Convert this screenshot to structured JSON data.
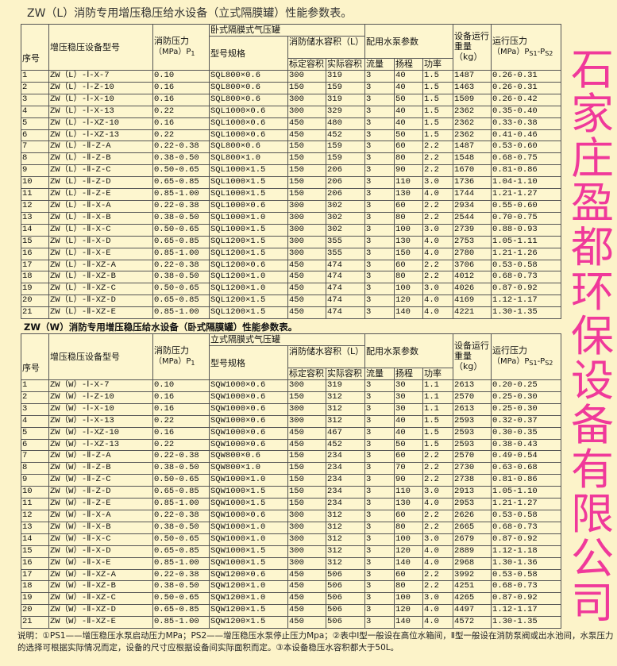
{
  "table1": {
    "title": "ZW（L）消防专用增压稳压给水设备（立式隔膜罐）性能参数表。",
    "headers": {
      "no": "序号",
      "model": "增压稳压设备型号",
      "fire_pressure": "消防压力",
      "fire_pressure_unit": "（MPa）P",
      "fire_pressure_sub": "1",
      "tank_group": "卧式隔膜式气压罐",
      "tank_spec": "型号规格",
      "volume_group": "消防储水容积（L）",
      "rated_volume": "标定容积",
      "actual_volume": "实际容积",
      "pump_group": "配用水泵参数",
      "flow": "流量",
      "head": "扬程",
      "power": "功率",
      "weight": "设备运行重量（kg）",
      "op_pressure": "运行压力",
      "op_pressure_unit": "（MPa）P",
      "op_s1": "S1",
      "op_dash": "-P",
      "op_s2": "S2"
    },
    "rows": [
      [
        "1",
        "ZW（L）-Ⅰ-X-7",
        "0.10",
        "SQL800×0.6",
        "300",
        "319",
        "3",
        "40",
        "1.5",
        "1487",
        "0.26-0.31"
      ],
      [
        "2",
        "ZW（L）-Ⅰ-Z-10",
        "0.16",
        "SQL800×0.6",
        "150",
        "159",
        "3",
        "40",
        "1.5",
        "1463",
        "0.26-0.31"
      ],
      [
        "3",
        "ZW（L）-Ⅰ-X-10",
        "0.16",
        "SQL800×0.6",
        "300",
        "319",
        "3",
        "50",
        "1.5",
        "1509",
        "0.26-0.42"
      ],
      [
        "4",
        "ZW（L）-Ⅰ-X-13",
        "0.22",
        "SQL1000×0.6",
        "300",
        "329",
        "3",
        "40",
        "1.5",
        "2362",
        "0.35-0.40"
      ],
      [
        "5",
        "ZW（L）-Ⅰ-XZ-10",
        "0.16",
        "SQL1000×0.6",
        "450",
        "480",
        "3",
        "40",
        "1.5",
        "2362",
        "0.33-0.38"
      ],
      [
        "6",
        "ZW（L）-Ⅰ-XZ-13",
        "0.22",
        "SQL1000×0.6",
        "450",
        "452",
        "3",
        "50",
        "1.5",
        "2362",
        "0.41-0.46"
      ],
      [
        "7",
        "ZW（L）-Ⅱ-Z-A",
        "0.22-0.38",
        "SQL800×0.6",
        "150",
        "159",
        "3",
        "60",
        "2.2",
        "1487",
        "0.53-0.60"
      ],
      [
        "8",
        "ZW（L）-Ⅱ-Z-B",
        "0.38-0.50",
        "SQL800×1.0",
        "150",
        "159",
        "3",
        "80",
        "2.2",
        "1548",
        "0.68-0.75"
      ],
      [
        "9",
        "ZW（L）-Ⅱ-Z-C",
        "0.50-0.65",
        "SQL1000×1.5",
        "150",
        "206",
        "3",
        "90",
        "2.2",
        "1670",
        "0.81-0.86"
      ],
      [
        "10",
        "ZW（L）-Ⅱ-Z-D",
        "0.65-0.85",
        "SQL1000×1.5",
        "150",
        "206",
        "3",
        "110",
        "3.0",
        "1736",
        "1.04-1.10"
      ],
      [
        "11",
        "ZW（L）-Ⅱ-Z-E",
        "0.85-1.00",
        "SQL1000×1.5",
        "150",
        "206",
        "3",
        "130",
        "4.0",
        "1744",
        "1.21-1.27"
      ],
      [
        "12",
        "ZW（L）-Ⅱ-X-A",
        "0.22-0.38",
        "SQL1000×0.6",
        "300",
        "302",
        "3",
        "60",
        "2.2",
        "2934",
        "0.55-0.60"
      ],
      [
        "13",
        "ZW（L）-Ⅱ-X-B",
        "0.38-0.50",
        "SQL1000×1.0",
        "300",
        "302",
        "3",
        "80",
        "2.2",
        "2544",
        "0.70-0.75"
      ],
      [
        "14",
        "ZW（L）-Ⅱ-X-C",
        "0.50-0.65",
        "SQL1000×1.5",
        "300",
        "302",
        "3",
        "100",
        "3.0",
        "2739",
        "0.88-0.93"
      ],
      [
        "15",
        "ZW（L）-Ⅱ-X-D",
        "0.65-0.85",
        "SQL1200×1.5",
        "300",
        "355",
        "3",
        "130",
        "4.0",
        "2753",
        "1.05-1.11"
      ],
      [
        "16",
        "ZW（L）-Ⅱ-X-E",
        "0.85-1.00",
        "SQL1200×1.5",
        "300",
        "355",
        "3",
        "150",
        "4.0",
        "2780",
        "1.21-1.26"
      ],
      [
        "17",
        "ZW（L）-Ⅱ-XZ-A",
        "0.22-0.38",
        "SQL1200×0.6",
        "450",
        "474",
        "3",
        "60",
        "2.2",
        "3706",
        "0.53-0.58"
      ],
      [
        "18",
        "ZW（L）-Ⅱ-XZ-B",
        "0.38-0.50",
        "SQL1200×1.0",
        "450",
        "474",
        "3",
        "80",
        "2.2",
        "4012",
        "0.68-0.73"
      ],
      [
        "19",
        "ZW（L）-Ⅱ-XZ-C",
        "0.50-0.65",
        "SQL1200×1.0",
        "450",
        "474",
        "3",
        "100",
        "3.0",
        "4026",
        "0.87-0.92"
      ],
      [
        "20",
        "ZW（L）-Ⅱ-XZ-D",
        "0.65-0.85",
        "SQL1200×1.5",
        "450",
        "474",
        "3",
        "120",
        "4.0",
        "4169",
        "1.12-1.17"
      ],
      [
        "21",
        "ZW（L）-Ⅱ-XZ-E",
        "0.85-1.00",
        "SQL1200×1.5",
        "450",
        "474",
        "3",
        "140",
        "4.0",
        "4221",
        "1.30-1.35"
      ]
    ]
  },
  "table2": {
    "title": "ZW（W）消防专用增压稳压给水设备（卧式隔膜罐）性能参数表。",
    "headers": {
      "no": "序号",
      "model": "增压稳压设备型号",
      "fire_pressure": "消防压力",
      "fire_pressure_unit": "（MPa）P",
      "fire_pressure_sub": "1",
      "tank_group": "立式隔膜式气压罐",
      "tank_spec": "型号规格",
      "volume_group": "消防储水容积（L）",
      "rated_volume": "标定容积",
      "actual_volume": "实际容积",
      "pump_group": "配用水泵参数",
      "flow": "流量",
      "head": "扬程",
      "power": "功率",
      "weight": "设备运行重量（kg）",
      "op_pressure": "运行压力",
      "op_pressure_unit": "（MPa）P",
      "op_s1": "S1",
      "op_dash": "-P",
      "op_s2": "S2"
    },
    "rows": [
      [
        "1",
        "ZW（W）-Ⅰ-X-7",
        "0.10",
        "SQW1000×0.6",
        "300",
        "319",
        "3",
        "30",
        "1.1",
        "2613",
        "0.20-0.25"
      ],
      [
        "2",
        "ZW（W）-Ⅰ-Z-10",
        "0.16",
        "SQW1000×0.6",
        "150",
        "312",
        "3",
        "30",
        "1.1",
        "2570",
        "0.25-0.30"
      ],
      [
        "3",
        "ZW（W）-Ⅰ-X-10",
        "0.16",
        "SQW1000×0.6",
        "300",
        "312",
        "3",
        "30",
        "1.1",
        "2613",
        "0.25-0.30"
      ],
      [
        "4",
        "ZW（W）-Ⅰ-X-13",
        "0.22",
        "SQW1000×0.6",
        "300",
        "312",
        "3",
        "40",
        "1.5",
        "2593",
        "0.32-0.37"
      ],
      [
        "5",
        "ZW（W）-Ⅰ-XZ-10",
        "0.16",
        "SQW1000×0.6",
        "450",
        "467",
        "3",
        "40",
        "1.5",
        "2593",
        "0.30-0.35"
      ],
      [
        "6",
        "ZW（W）-Ⅰ-XZ-13",
        "0.22",
        "SQW1000×0.6",
        "450",
        "452",
        "3",
        "50",
        "1.5",
        "2593",
        "0.38-0.43"
      ],
      [
        "7",
        "ZW（W）-Ⅱ-Z-A",
        "0.22-0.38",
        "SQW800×0.6",
        "150",
        "234",
        "3",
        "60",
        "2.2",
        "2570",
        "0.49-0.54"
      ],
      [
        "8",
        "ZW（W）-Ⅱ-Z-B",
        "0.38-0.50",
        "SQW800×1.0",
        "150",
        "234",
        "3",
        "70",
        "2.2",
        "2730",
        "0.63-0.68"
      ],
      [
        "9",
        "ZW（W）-Ⅱ-Z-C",
        "0.50-0.65",
        "SQW1000×1.0",
        "150",
        "234",
        "3",
        "90",
        "2.2",
        "2738",
        "0.81-0.86"
      ],
      [
        "10",
        "ZW（W）-Ⅱ-Z-D",
        "0.65-0.85",
        "SQW1000×1.5",
        "150",
        "234",
        "3",
        "110",
        "3.0",
        "2913",
        "1.05-1.10"
      ],
      [
        "11",
        "ZW（W）-Ⅱ-Z-E",
        "0.85-1.00",
        "SQW1000×1.5",
        "150",
        "234",
        "3",
        "130",
        "4.0",
        "2953",
        "1.21-1.27"
      ],
      [
        "12",
        "ZW（W）-Ⅱ-X-A",
        "0.22-0.38",
        "SQW1000×0.6",
        "300",
        "312",
        "3",
        "60",
        "2.2",
        "2626",
        "0.53-0.58"
      ],
      [
        "13",
        "ZW（W）-Ⅱ-X-B",
        "0.38-0.50",
        "SQW1000×1.0",
        "300",
        "312",
        "3",
        "80",
        "2.2",
        "2665",
        "0.68-0.73"
      ],
      [
        "14",
        "ZW（W）-Ⅱ-X-C",
        "0.50-0.65",
        "SQW1000×1.0",
        "300",
        "312",
        "3",
        "100",
        "3.0",
        "2679",
        "0.87-0.92"
      ],
      [
        "15",
        "ZW（W）-Ⅱ-X-D",
        "0.65-0.85",
        "SQW1000×1.5",
        "300",
        "312",
        "3",
        "120",
        "4.0",
        "2889",
        "1.12-1.18"
      ],
      [
        "16",
        "ZW（W）-Ⅱ-X-E",
        "0.85-1.00",
        "SQW1000×1.5",
        "300",
        "312",
        "3",
        "140",
        "4.0",
        "2968",
        "1.30-1.36"
      ],
      [
        "17",
        "ZW（W）-Ⅱ-XZ-A",
        "0.22-0.38",
        "SQW1200×0.6",
        "450",
        "506",
        "3",
        "60",
        "2.2",
        "3992",
        "0.53-0.58"
      ],
      [
        "18",
        "ZW（W）-Ⅱ-XZ-B",
        "0.38-0.50",
        "SQW1200×1.0",
        "450",
        "506",
        "3",
        "80",
        "2.2",
        "4251",
        "0.68-0.73"
      ],
      [
        "19",
        "ZW（W）-Ⅱ-XZ-C",
        "0.50-0.65",
        "SQW1200×1.0",
        "450",
        "506",
        "3",
        "100",
        "3.0",
        "4265",
        "0.87-0.92"
      ],
      [
        "20",
        "ZW（W）-Ⅱ-XZ-D",
        "0.65-0.85",
        "SQW1200×1.5",
        "450",
        "506",
        "3",
        "120",
        "4.0",
        "4497",
        "1.12-1.17"
      ],
      [
        "21",
        "ZW（W）-Ⅱ-XZ-E",
        "0.85-1.00",
        "SQW1200×1.5",
        "450",
        "506",
        "3",
        "140",
        "4.0",
        "4572",
        "1.30-1.35"
      ]
    ]
  },
  "note": "说明：①PS1——增压稳压水泵启动压力MPa；PS2——增压稳压水泵停止压力Mpa；②表中Ⅰ型一般设在高位水箱间，Ⅱ型一般设在消防泵阀或出水池间，水泵压力的选择可根据实际情况而定，设备的尺寸应根据设备间实际面积而定。③本设备稳压水容积都大于50L。",
  "brand": {
    "text": "石家庄盈都环保设备有限公司",
    "color": "#f0399a"
  }
}
